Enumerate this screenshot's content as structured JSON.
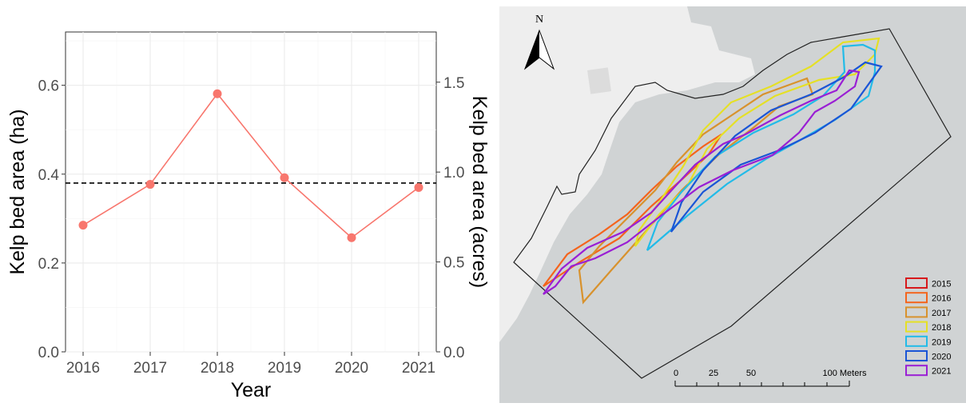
{
  "chart_data": {
    "type": "line",
    "x": [
      2016,
      2017,
      2018,
      2019,
      2020,
      2021
    ],
    "series": [
      {
        "values": [
          0.285,
          0.377,
          0.581,
          0.392,
          0.257,
          0.37
        ]
      }
    ],
    "reference_line": {
      "y": 0.38,
      "style": "dashed"
    },
    "xlabel": "Year",
    "ylabel": "Kelp bed area (ha)",
    "y2label": "Kelp bed area (acres)",
    "xlim": [
      2016,
      2021
    ],
    "ylim": [
      0,
      0.72
    ],
    "yticks": [
      "0.0",
      "0.2",
      "0.4",
      "0.6"
    ],
    "y2ticks": [
      "0.0",
      "0.5",
      "1.0",
      "1.5"
    ],
    "xticks": [
      "2016",
      "2017",
      "2018",
      "2019",
      "2020",
      "2021"
    ],
    "grid": true,
    "colors": {
      "series": "#F8766D",
      "grid": "#ebebeb",
      "reference": "#000000"
    }
  },
  "map": {
    "north_label": "N",
    "scale_labels": [
      "0",
      "25",
      "50",
      "100 Meters"
    ],
    "legend": [
      {
        "year": "2015",
        "color": "#d7191c"
      },
      {
        "year": "2016",
        "color": "#f4641c"
      },
      {
        "year": "2017",
        "color": "#d8922d"
      },
      {
        "year": "2018",
        "color": "#e5e026"
      },
      {
        "year": "2019",
        "color": "#22bbe8"
      },
      {
        "year": "2020",
        "color": "#1a55d6"
      },
      {
        "year": "2021",
        "color": "#9a1fd4"
      }
    ],
    "colors": {
      "water": "#d0d3d4",
      "land": "#eeeeee"
    }
  }
}
